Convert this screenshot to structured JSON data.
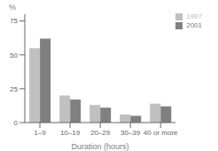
{
  "chart_data": {
    "type": "bar",
    "categories": [
      "1–9",
      "10–19",
      "20–29",
      "30–39",
      "40 or more"
    ],
    "series": [
      {
        "name": "1997",
        "color": "#c0c0c0",
        "values": [
          55,
          20,
          13,
          6,
          14
        ]
      },
      {
        "name": "2001",
        "color": "#808080",
        "values": [
          62,
          17,
          11,
          5,
          12
        ]
      }
    ],
    "xlabel": "Duration (hours)",
    "ylabel": "%",
    "ylim": [
      0,
      80
    ],
    "yticks": [
      0,
      25,
      50,
      75
    ],
    "legend": "upper right"
  }
}
